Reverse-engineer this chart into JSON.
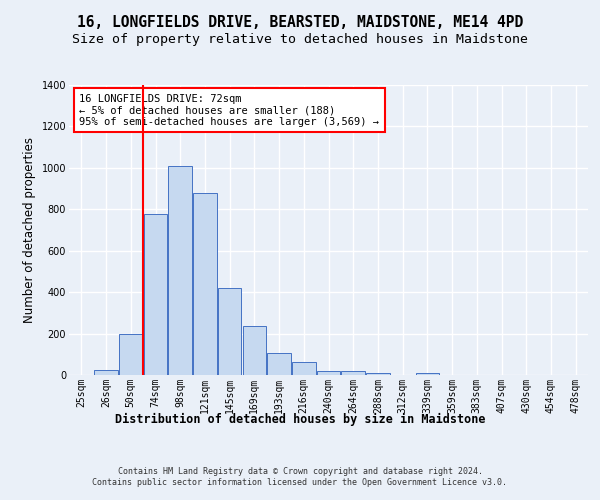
{
  "title1": "16, LONGFIELDS DRIVE, BEARSTED, MAIDSTONE, ME14 4PD",
  "title2": "Size of property relative to detached houses in Maidstone",
  "xlabel": "Distribution of detached houses by size in Maidstone",
  "ylabel": "Number of detached properties",
  "categories": [
    "25sqm",
    "26sqm",
    "50sqm",
    "74sqm",
    "98sqm",
    "121sqm",
    "145sqm",
    "169sqm",
    "193sqm",
    "216sqm",
    "240sqm",
    "264sqm",
    "288sqm",
    "312sqm",
    "339sqm",
    "359sqm",
    "383sqm",
    "407sqm",
    "430sqm",
    "454sqm",
    "478sqm"
  ],
  "bar_values": [
    0,
    25,
    200,
    775,
    1010,
    880,
    420,
    235,
    105,
    65,
    20,
    20,
    10,
    0,
    10,
    0,
    0,
    0,
    0,
    0,
    0
  ],
  "bar_color": "#c6d9f0",
  "bar_edge_color": "#4472c4",
  "vline_x_index": 2.5,
  "annotation_box_text": "16 LONGFIELDS DRIVE: 72sqm\n← 5% of detached houses are smaller (188)\n95% of semi-detached houses are larger (3,569) →",
  "ylim": [
    0,
    1400
  ],
  "yticks": [
    0,
    200,
    400,
    600,
    800,
    1000,
    1200,
    1400
  ],
  "footer_text": "Contains HM Land Registry data © Crown copyright and database right 2024.\nContains public sector information licensed under the Open Government Licence v3.0.",
  "bg_color": "#eaf0f8",
  "plot_bg_color": "#eaf0f8",
  "grid_color": "#ffffff",
  "title1_fontsize": 10.5,
  "title2_fontsize": 9.5,
  "label_fontsize": 8.5,
  "tick_fontsize": 7,
  "footer_fontsize": 6,
  "annotation_fontsize": 7.5
}
